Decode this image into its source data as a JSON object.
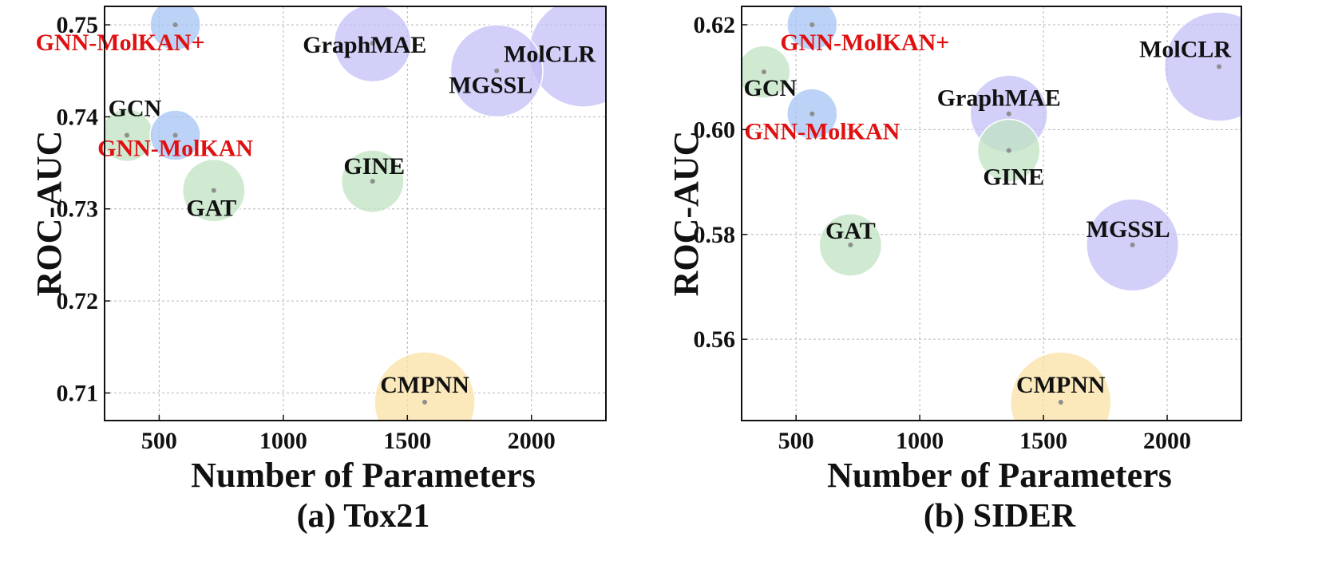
{
  "chart_data": [
    {
      "type": "scatter",
      "title": "(a) Tox21",
      "xlabel": "Number of Parameters",
      "ylabel": "ROC-AUC",
      "xlim": [
        280,
        2300
      ],
      "ylim": [
        0.707,
        0.752
      ],
      "xticks": [
        500,
        1000,
        1500,
        2000
      ],
      "xtick_labels": [
        "500",
        "1000",
        "1500",
        "2000"
      ],
      "yticks": [
        0.71,
        0.72,
        0.73,
        0.74,
        0.75
      ],
      "ytick_labels": [
        "0.71",
        "0.72",
        "0.73",
        "0.74",
        "0.75"
      ],
      "grid": true,
      "points": [
        {
          "label": "GNN-MolKAN+",
          "x": 565,
          "y": 0.75,
          "size": 1100,
          "color": "#a6c4f4",
          "label_color": "#e01010"
        },
        {
          "label": "GraphMAE",
          "x": 1360,
          "y": 0.748,
          "size": 2600,
          "color": "#c3bff7",
          "label_color": "#111111"
        },
        {
          "label": "MolCLR",
          "x": 2210,
          "y": 0.747,
          "size": 5200,
          "color": "#c3bff7",
          "label_color": "#111111"
        },
        {
          "label": "MGSSL",
          "x": 1860,
          "y": 0.745,
          "size": 3700,
          "color": "#c3bff7",
          "label_color": "#111111"
        },
        {
          "label": "GCN",
          "x": 370,
          "y": 0.738,
          "size": 1200,
          "color": "#bfe3c2",
          "label_color": "#111111"
        },
        {
          "label": "GNN-MolKAN",
          "x": 565,
          "y": 0.738,
          "size": 1100,
          "color": "#a6c4f4",
          "label_color": "#e01010"
        },
        {
          "label": "GAT",
          "x": 720,
          "y": 0.732,
          "size": 1700,
          "color": "#bfe3c2",
          "label_color": "#111111"
        },
        {
          "label": "GINE",
          "x": 1360,
          "y": 0.733,
          "size": 1700,
          "color": "#bfe3c2",
          "label_color": "#111111"
        },
        {
          "label": "CMPNN",
          "x": 1570,
          "y": 0.709,
          "size": 4400,
          "color": "#fae2a6",
          "label_color": "#111111"
        }
      ]
    },
    {
      "type": "scatter",
      "title": "(b) SIDER",
      "xlabel": "Number of Parameters",
      "ylabel": "ROC-AUC",
      "xlim": [
        280,
        2300
      ],
      "ylim": [
        0.5445,
        0.6235
      ],
      "xticks": [
        500,
        1000,
        1500,
        2000
      ],
      "xtick_labels": [
        "500",
        "1000",
        "1500",
        "2000"
      ],
      "yticks": [
        0.56,
        0.58,
        0.6,
        0.62
      ],
      "ytick_labels": [
        "0.56",
        "0.58",
        "0.60",
        "0.62"
      ],
      "grid": true,
      "points": [
        {
          "label": "GNN-MolKAN+",
          "x": 565,
          "y": 0.62,
          "size": 1100,
          "color": "#a6c4f4",
          "label_color": "#e01010"
        },
        {
          "label": "GCN",
          "x": 370,
          "y": 0.611,
          "size": 1200,
          "color": "#bfe3c2",
          "label_color": "#111111"
        },
        {
          "label": "MolCLR",
          "x": 2210,
          "y": 0.612,
          "size": 5200,
          "color": "#c3bff7",
          "label_color": "#111111"
        },
        {
          "label": "GNN-MolKAN",
          "x": 565,
          "y": 0.603,
          "size": 1100,
          "color": "#a6c4f4",
          "label_color": "#e01010"
        },
        {
          "label": "GraphMAE",
          "x": 1360,
          "y": 0.603,
          "size": 2600,
          "color": "#c3bff7",
          "label_color": "#111111"
        },
        {
          "label": "GINE",
          "x": 1360,
          "y": 0.596,
          "size": 1700,
          "color": "#bfe3c2",
          "label_color": "#111111"
        },
        {
          "label": "GAT",
          "x": 720,
          "y": 0.578,
          "size": 1700,
          "color": "#bfe3c2",
          "label_color": "#111111"
        },
        {
          "label": "MGSSL",
          "x": 1860,
          "y": 0.578,
          "size": 3700,
          "color": "#c3bff7",
          "label_color": "#111111"
        },
        {
          "label": "CMPNN",
          "x": 1570,
          "y": 0.548,
          "size": 4400,
          "color": "#fae2a6",
          "label_color": "#111111"
        }
      ]
    }
  ]
}
